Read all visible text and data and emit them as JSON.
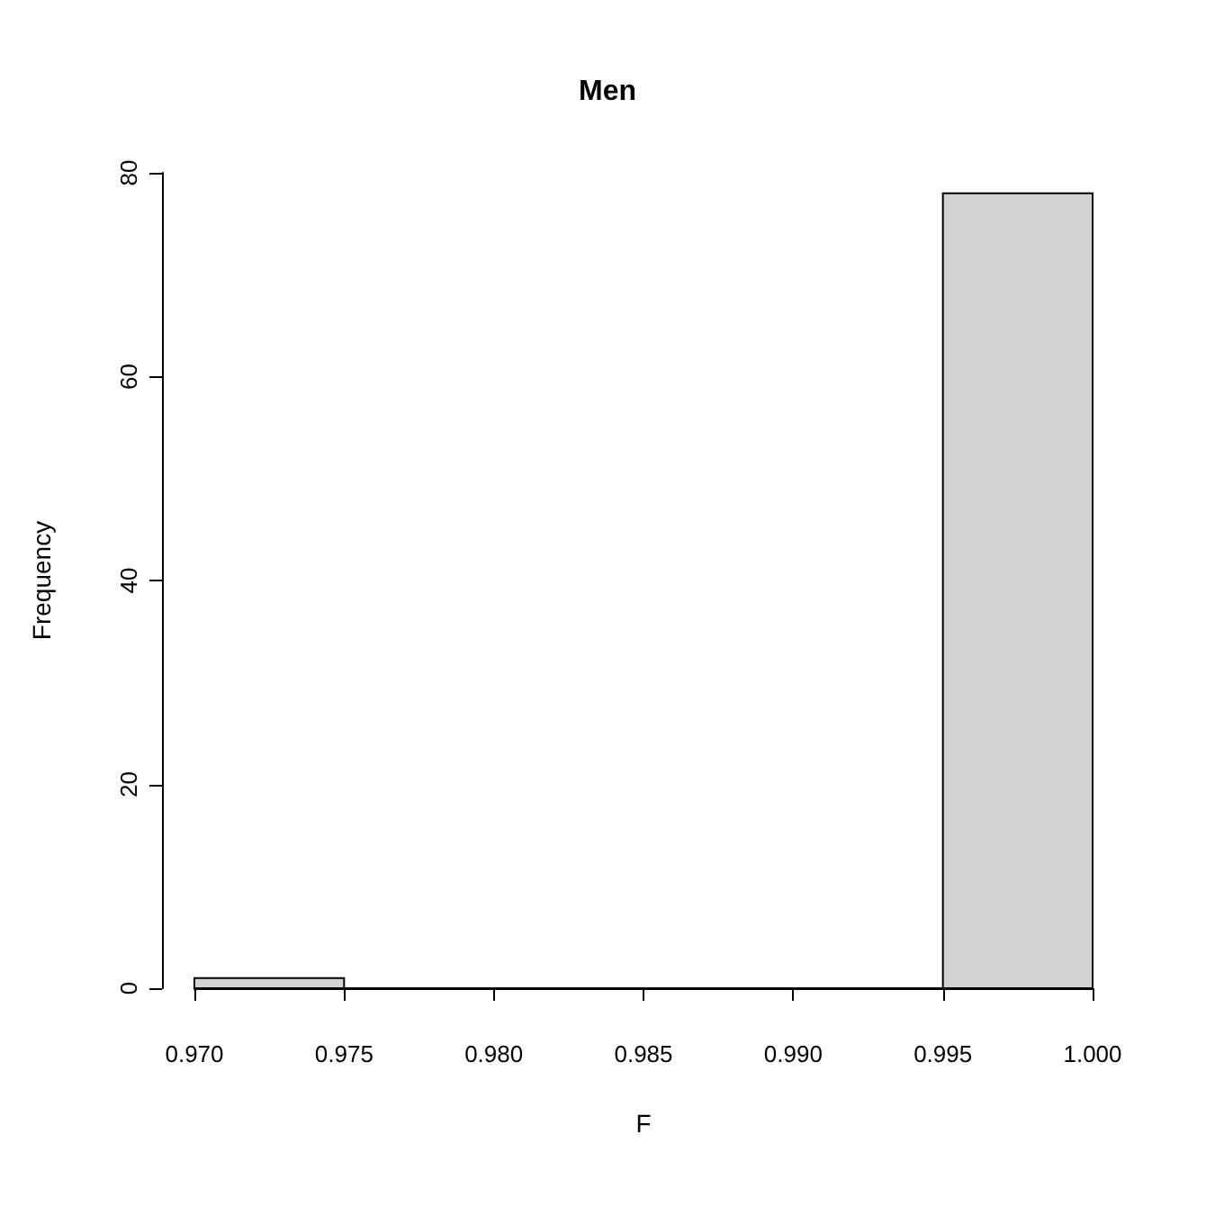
{
  "chart_data": {
    "type": "histogram",
    "title": "Men",
    "xlabel": "F",
    "ylabel": "Frequency",
    "bins": [
      0.97,
      0.975,
      0.98,
      0.985,
      0.99,
      0.995,
      1.0
    ],
    "values": [
      1,
      0,
      0,
      0,
      0,
      78
    ],
    "color": "#d3d3d3",
    "xlim": [
      0.97,
      1.0
    ],
    "xticks": [
      {
        "value": 0.97,
        "label": "0.970"
      },
      {
        "value": 0.975,
        "label": "0.975"
      },
      {
        "value": 0.98,
        "label": "0.980"
      },
      {
        "value": 0.985,
        "label": "0.985"
      },
      {
        "value": 0.99,
        "label": "0.990"
      },
      {
        "value": 0.995,
        "label": "0.995"
      },
      {
        "value": 1.0,
        "label": "1.000"
      }
    ],
    "ylim": [
      0,
      80
    ],
    "yticks": [
      0,
      20,
      40,
      60,
      80
    ]
  }
}
